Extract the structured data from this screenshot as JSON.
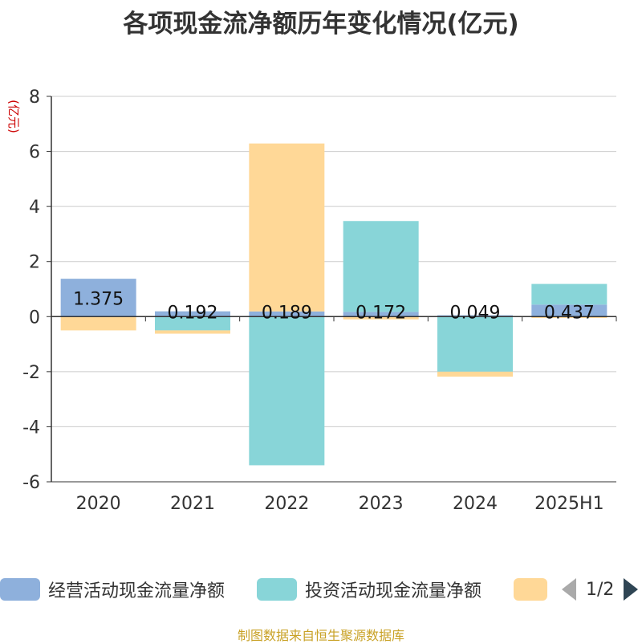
{
  "title": "各项现金流净额历年变化情况(亿元)",
  "source": "制图数据来自恒生聚源数据库",
  "colors": {
    "operating": "#8eb0dc",
    "investing": "#88d5d8",
    "financing": "#ffd897",
    "axis": "#333333",
    "grid": "#cccccc",
    "unit": "#cc0000"
  },
  "legend": {
    "items": [
      "经营活动现金流量净额",
      "投资活动现金流量净额",
      ""
    ],
    "page": "1/2"
  },
  "chart_data": {
    "type": "bar",
    "stacked": true,
    "ylabel": "(亿元)",
    "categories": [
      "2020",
      "2021",
      "2022",
      "2023",
      "2024",
      "2025H1"
    ],
    "ylim": [
      -6,
      8
    ],
    "yticks": [
      8,
      6,
      4,
      2,
      0,
      -2,
      -4,
      -6
    ],
    "grid": true,
    "legend_position": "bottom",
    "series": [
      {
        "name": "经营活动现金流量净额",
        "values": [
          1.375,
          0.192,
          0.189,
          0.172,
          0.049,
          0.437
        ],
        "labels": [
          "1.375",
          "0.192",
          "0.189",
          "0.172",
          "0.049",
          "0.437"
        ]
      },
      {
        "name": "投资活动现金流量净额",
        "values": [
          0,
          -0.5,
          -5.4,
          3.3,
          -2.0,
          0.75
        ]
      },
      {
        "values": [
          -0.5,
          -0.12,
          6.1,
          -0.1,
          -0.18,
          -0.05
        ]
      }
    ]
  }
}
